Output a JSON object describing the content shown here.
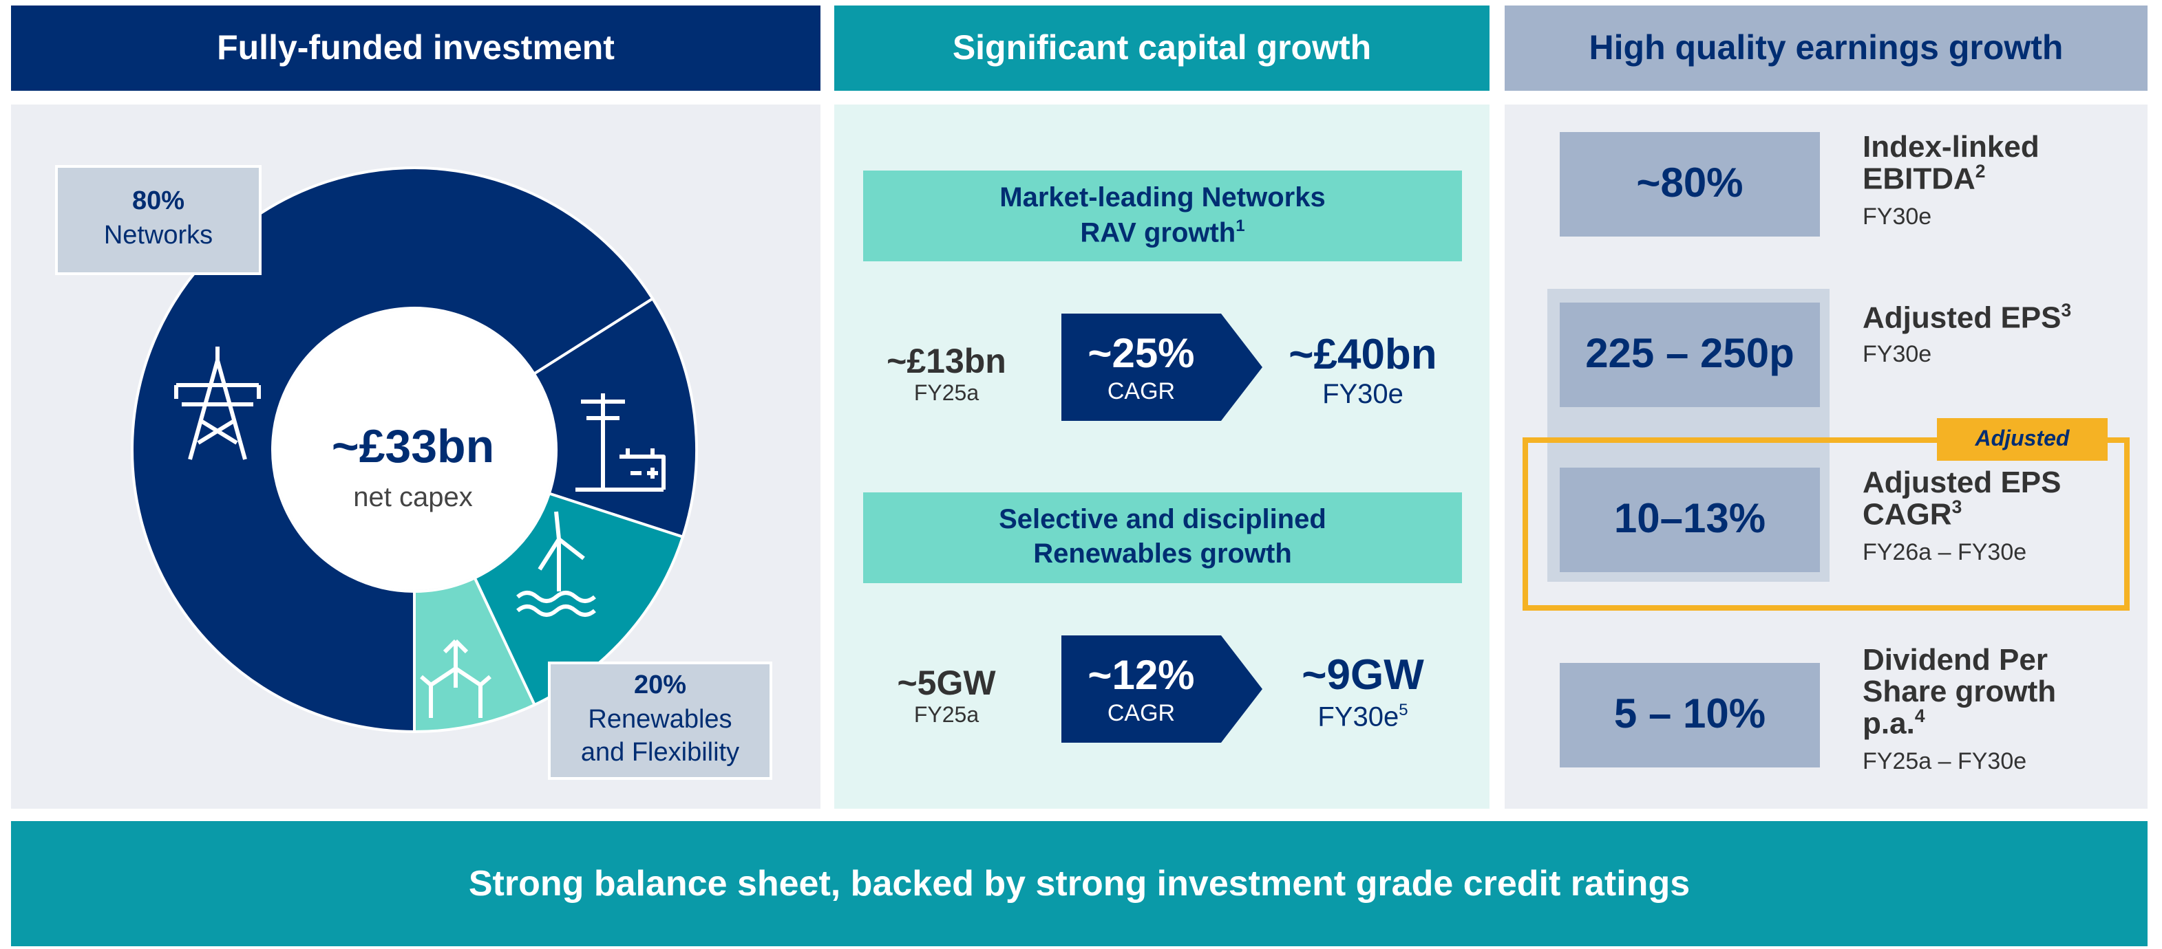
{
  "panels": [
    {
      "title": "Fully-funded investment",
      "center_value": "~£33bn",
      "center_label": "net capex",
      "callouts": [
        {
          "value": "80%",
          "label": "Networks"
        },
        {
          "value": "20%",
          "label": "Renewables\nand Flexibility"
        }
      ],
      "donut": {
        "values": [
          66,
          14,
          13,
          7
        ],
        "colors": [
          "#002d72",
          "#002d72",
          "#0098a6",
          "#72d9c9"
        ]
      }
    },
    {
      "title": "Significant capital growth",
      "sections": [
        {
          "heading": "Market-leading Networks\nRAV growth",
          "heading_note": "1",
          "from_value": "~£13bn",
          "from_label": "FY25a",
          "growth_value": "~25%",
          "growth_label": "CAGR",
          "to_value": "~£40bn",
          "to_label": "FY30e"
        },
        {
          "heading": "Selective and disciplined\nRenewables growth",
          "from_value": "~5GW",
          "from_label": "FY25a",
          "growth_value": "~12%",
          "growth_label": "CAGR",
          "to_value": "~9GW",
          "to_label": "FY30e",
          "to_note": "5"
        }
      ]
    },
    {
      "title": "High quality earnings growth",
      "items": [
        {
          "value": "~80%",
          "label": "Index-linked\nEBITDA",
          "note": "2",
          "period": "FY30e"
        },
        {
          "value": "225 – 250p",
          "label": "Adjusted EPS",
          "note": "3",
          "period": "FY30e"
        },
        {
          "value": "10–13%",
          "label": "Adjusted EPS\nCAGR",
          "note": "3",
          "period": "FY26a – FY30e",
          "badge": "Adjusted"
        },
        {
          "value": "5 – 10%",
          "label": "Dividend Per\nShare growth\np.a.",
          "note": "4",
          "period": "FY25a – FY30e"
        }
      ]
    }
  ],
  "footer": "Strong balance sheet, backed by strong investment grade credit ratings"
}
